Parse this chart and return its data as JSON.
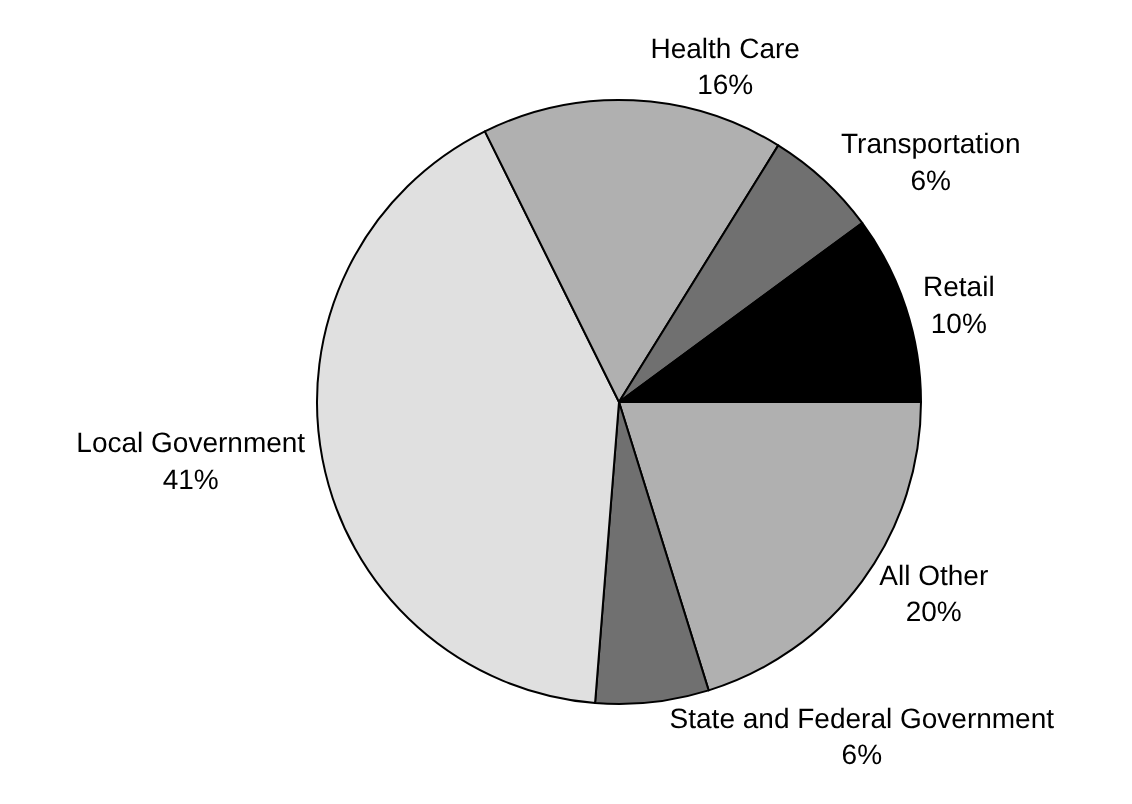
{
  "chart_data": {
    "type": "pie",
    "categories": [
      "All Other",
      "State and Federal Government",
      "Local Government",
      "Health Care",
      "Transportation",
      "Retail"
    ],
    "values": [
      20,
      6,
      41,
      16,
      6,
      10
    ],
    "value_labels": [
      "20%",
      "6%",
      "41%",
      "16%",
      "6%",
      "10%"
    ],
    "colors": [
      "#b0b0b0",
      "#707070",
      "#e0e0e0",
      "#b0b0b0",
      "#707070",
      "#000000"
    ],
    "legend": false
  }
}
